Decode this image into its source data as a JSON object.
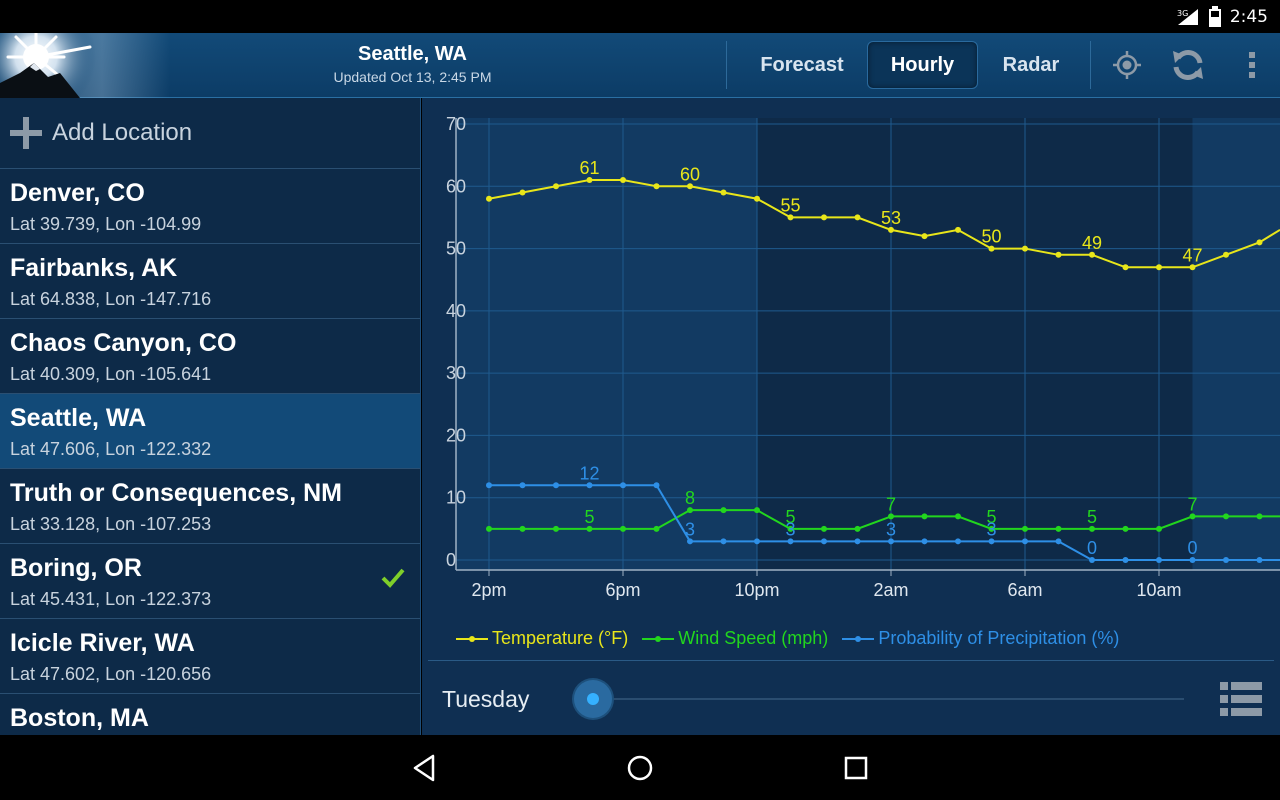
{
  "status_bar": {
    "time": "2:45",
    "network": "3G"
  },
  "app_bar": {
    "title": "Seattle, WA",
    "subtitle": "Updated Oct 13, 2:45 PM",
    "tabs": [
      {
        "label": "Forecast",
        "active": false
      },
      {
        "label": "Hourly",
        "active": true
      },
      {
        "label": "Radar",
        "active": false
      }
    ],
    "icons": [
      "locate-icon",
      "refresh-icon",
      "overflow-menu-icon"
    ]
  },
  "sidebar": {
    "add_location_label": "Add Location",
    "locations": [
      {
        "name": "Denver, CO",
        "coords": "Lat 39.739, Lon -104.99",
        "selected": false,
        "checked": false
      },
      {
        "name": "Fairbanks, AK",
        "coords": "Lat 64.838, Lon -147.716",
        "selected": false,
        "checked": false
      },
      {
        "name": "Chaos Canyon, CO",
        "coords": "Lat 40.309, Lon -105.641",
        "selected": false,
        "checked": false
      },
      {
        "name": "Seattle, WA",
        "coords": "Lat 47.606, Lon -122.332",
        "selected": true,
        "checked": false
      },
      {
        "name": "Truth or Consequences, NM",
        "coords": "Lat 33.128, Lon -107.253",
        "selected": false,
        "checked": false
      },
      {
        "name": "Boring, OR",
        "coords": "Lat 45.431, Lon -122.373",
        "selected": false,
        "checked": true
      },
      {
        "name": "Icicle River, WA",
        "coords": "Lat 47.602, Lon -120.656",
        "selected": false,
        "checked": false
      },
      {
        "name": "Boston, MA",
        "coords": "",
        "selected": false,
        "checked": false
      }
    ]
  },
  "colors": {
    "temperature": "#e8e61a",
    "wind": "#22d61e",
    "precip": "#2e8fe6",
    "accent": "#35b1ff"
  },
  "chart_data": {
    "type": "line",
    "ylim": [
      0,
      70
    ],
    "yticks": [
      0,
      10,
      20,
      30,
      40,
      50,
      60,
      70
    ],
    "x_tick_labels": [
      "2pm",
      "6pm",
      "10pm",
      "2am",
      "6am",
      "10am"
    ],
    "x_tick_hours": [
      0,
      4,
      8,
      12,
      16,
      20
    ],
    "night_span_hours": [
      8,
      21
    ],
    "x": [
      0,
      1,
      2,
      3,
      4,
      5,
      6,
      7,
      8,
      9,
      10,
      11,
      12,
      13,
      14,
      15,
      16,
      17,
      18,
      19,
      20,
      21,
      22,
      23
    ],
    "series": [
      {
        "name": "Temperature (°F)",
        "color_key": "temperature",
        "values": [
          58,
          59,
          60,
          61,
          61,
          60,
          60,
          59,
          58,
          55,
          55,
          55,
          53,
          52,
          53,
          50,
          50,
          49,
          49,
          47,
          47,
          47,
          49,
          51
        ],
        "labels": [
          {
            "x": 3,
            "text": "61"
          },
          {
            "x": 6,
            "text": "60"
          },
          {
            "x": 9,
            "text": "55"
          },
          {
            "x": 12,
            "text": "53"
          },
          {
            "x": 15,
            "text": "50"
          },
          {
            "x": 18,
            "text": "49"
          },
          {
            "x": 21,
            "text": "47"
          }
        ]
      },
      {
        "name": "Wind Speed (mph)",
        "color_key": "wind",
        "values": [
          5,
          5,
          5,
          5,
          5,
          5,
          8,
          8,
          8,
          5,
          5,
          5,
          7,
          7,
          7,
          5,
          5,
          5,
          5,
          5,
          5,
          7,
          7,
          7
        ],
        "labels": [
          {
            "x": 3,
            "text": "5"
          },
          {
            "x": 6,
            "text": "8"
          },
          {
            "x": 9,
            "text": "5"
          },
          {
            "x": 12,
            "text": "7"
          },
          {
            "x": 15,
            "text": "5"
          },
          {
            "x": 18,
            "text": "5"
          },
          {
            "x": 21,
            "text": "7"
          }
        ]
      },
      {
        "name": "Probability of Precipitation (%)",
        "color_key": "precip",
        "values": [
          12,
          12,
          12,
          12,
          12,
          12,
          3,
          3,
          3,
          3,
          3,
          3,
          3,
          3,
          3,
          3,
          3,
          3,
          0,
          0,
          0,
          0,
          0,
          0
        ],
        "labels": [
          {
            "x": 3,
            "text": "12"
          },
          {
            "x": 6,
            "text": "3"
          },
          {
            "x": 9,
            "text": "3"
          },
          {
            "x": 12,
            "text": "3"
          },
          {
            "x": 15,
            "text": "3"
          },
          {
            "x": 18,
            "text": "0"
          },
          {
            "x": 21,
            "text": "0"
          }
        ]
      }
    ]
  },
  "day_selector": {
    "label": "Tuesday",
    "position": 0.0
  }
}
